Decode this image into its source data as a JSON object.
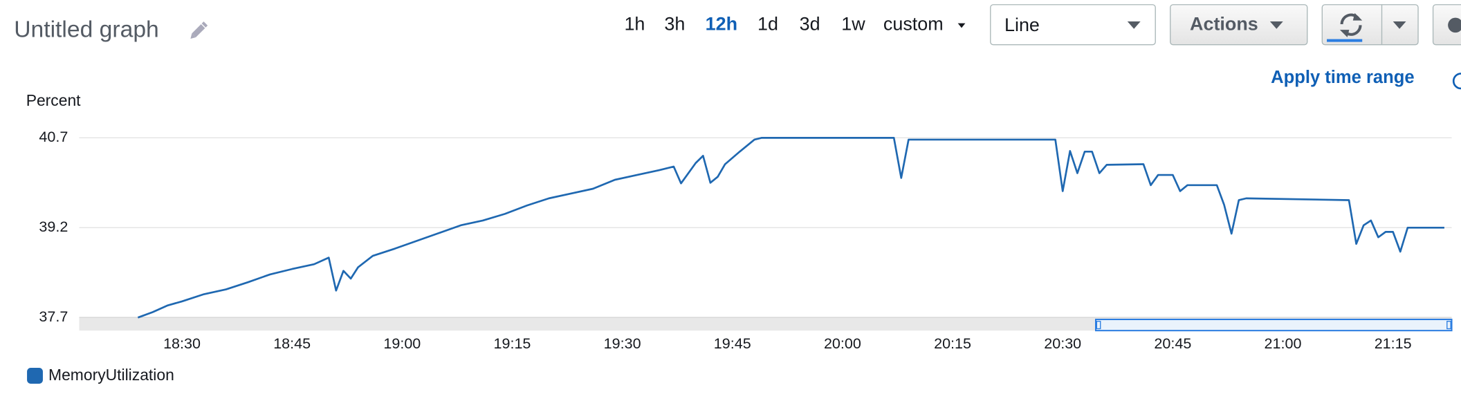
{
  "toolbar": {
    "title": "Untitled graph",
    "time_ranges": [
      "1h",
      "3h",
      "12h",
      "1d",
      "3d",
      "1w",
      "custom"
    ],
    "selected_time_range": 2,
    "view_type": "Line",
    "actions": "Actions",
    "apply_time_range": "Apply time range"
  },
  "chart_data": {
    "type": "line",
    "y_label": "Percent",
    "x": [
      "18:24",
      "18:26",
      "18:28",
      "18:30",
      "18:33",
      "18:36",
      "18:39",
      "18:42",
      "18:45",
      "18:48",
      "18:50",
      "18:51",
      "18:52",
      "18:53",
      "18:54",
      "18:56",
      "18:59",
      "19:02",
      "19:05",
      "19:08",
      "19:11",
      "19:14",
      "19:17",
      "19:20",
      "19:23",
      "19:26",
      "19:29",
      "19:32",
      "19:35",
      "19:37",
      "19:38",
      "19:40",
      "19:41",
      "19:42",
      "19:43",
      "19:44",
      "19:46",
      "19:48",
      "19:49",
      "20:07",
      "20:08",
      "20:09",
      "20:29",
      "20:30",
      "20:31",
      "20:32",
      "20:33",
      "20:34",
      "20:35",
      "20:36",
      "20:41",
      "20:42",
      "20:43",
      "20:45",
      "20:46",
      "20:47",
      "20:51",
      "20:52",
      "20:53",
      "20:54",
      "20:55",
      "21:09",
      "21:10",
      "21:11",
      "21:12",
      "21:13",
      "21:14",
      "21:15",
      "21:16",
      "21:17",
      "21:22"
    ],
    "series": [
      {
        "name": "MemoryUtilization",
        "color": "#1f68b1",
        "values": [
          37.7,
          37.79,
          37.9,
          37.97,
          38.09,
          38.17,
          38.29,
          38.42,
          38.51,
          38.59,
          38.7,
          38.15,
          38.48,
          38.35,
          38.54,
          38.73,
          38.85,
          38.98,
          39.11,
          39.24,
          39.32,
          39.43,
          39.57,
          39.69,
          39.77,
          39.85,
          40.0,
          40.08,
          40.16,
          40.22,
          39.94,
          40.28,
          40.4,
          39.95,
          40.05,
          40.26,
          40.47,
          40.67,
          40.7,
          40.7,
          40.03,
          40.67,
          40.67,
          39.81,
          40.48,
          40.11,
          40.47,
          40.47,
          40.11,
          40.25,
          40.26,
          39.91,
          40.08,
          40.08,
          39.81,
          39.91,
          39.91,
          39.58,
          39.1,
          39.66,
          39.69,
          39.66,
          38.93,
          39.24,
          39.32,
          39.04,
          39.13,
          39.13,
          38.8,
          39.2,
          39.2
        ]
      }
    ],
    "xlim": [
      "18:16",
      "21:23"
    ],
    "xticks": [
      "18:30",
      "18:45",
      "19:00",
      "19:15",
      "19:30",
      "19:45",
      "20:00",
      "20:15",
      "20:30",
      "20:45",
      "21:00",
      "21:15"
    ],
    "ylim": [
      37.7,
      40.7
    ],
    "yticks": [
      37.7,
      39.2,
      40.7
    ],
    "grid": true
  }
}
